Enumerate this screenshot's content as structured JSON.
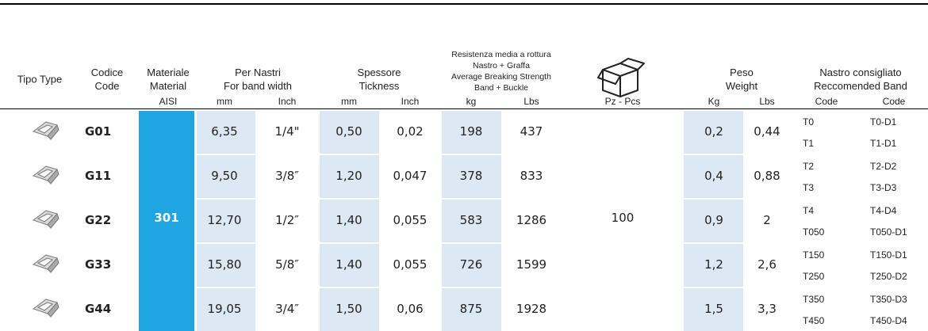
{
  "header": [
    {
      "lines": [
        "Tipo   Type"
      ]
    },
    {
      "lines": [
        "Codice",
        "Code"
      ]
    },
    {
      "lines": [
        "Materiale",
        "Material"
      ]
    },
    {
      "lines": [
        "Per Nastri",
        "For band  width"
      ]
    },
    {
      "lines": [
        "Spessore",
        "Tickness"
      ]
    },
    {
      "lines": [
        "Resistenza media a rottura",
        "Nastro + Graffa",
        "Average Breaking Strength",
        "Band + Buckle"
      ]
    },
    {
      "lines": [
        "Peso",
        "Weight"
      ]
    },
    {
      "lines": [
        "Nastro consigliato",
        "Reccomended  Band"
      ]
    }
  ],
  "subheader": [
    "AISI",
    "mm",
    "Inch",
    "mm",
    "Inch",
    "kg",
    "Lbs",
    "Pz - Pcs",
    "Kg",
    "Lbs",
    "Code",
    "Code"
  ],
  "material": "301",
  "pieces": "100",
  "rows": [
    {
      "code": "G01",
      "mm": "6,35",
      "inch": "1/4\"",
      "thick_mm": "0,50",
      "thick_inch": "0,02",
      "kg": "198",
      "lbs": "437",
      "weight_kg": "0,2",
      "weight_lbs": "0,44",
      "bands": [
        [
          "T0",
          "T0-D1"
        ],
        [
          "T1",
          "T1-D1"
        ]
      ]
    },
    {
      "code": "G11",
      "mm": "9,50",
      "inch": "3/8″",
      "thick_mm": "1,20",
      "thick_inch": "0,047",
      "kg": "378",
      "lbs": "833",
      "weight_kg": "0,4",
      "weight_lbs": "0,88",
      "bands": [
        [
          "T2",
          "T2-D2"
        ],
        [
          "T3",
          "T3-D3"
        ]
      ]
    },
    {
      "code": "G22",
      "mm": "12,70",
      "inch": "1/2″",
      "thick_mm": "1,40",
      "thick_inch": "0,055",
      "kg": "583",
      "lbs": "1286",
      "weight_kg": "0,9",
      "weight_lbs": "2",
      "bands": [
        [
          "T4",
          "T4-D4"
        ],
        [
          "T050",
          "T050-D1"
        ]
      ]
    },
    {
      "code": "G33",
      "mm": "15,80",
      "inch": "5/8″",
      "thick_mm": "1,40",
      "thick_inch": "0,055",
      "kg": "726",
      "lbs": "1599",
      "weight_kg": "1,2",
      "weight_lbs": "2,6",
      "bands": [
        [
          "T150",
          "T150-D1"
        ],
        [
          "T250",
          "T250-D2"
        ]
      ]
    },
    {
      "code": "G44",
      "mm": "19,05",
      "inch": "3/4″",
      "thick_mm": "1,50",
      "thick_inch": "0,06",
      "kg": "875",
      "lbs": "1928",
      "weight_kg": "1,5",
      "weight_lbs": "3,3",
      "bands": [
        [
          "T350",
          "T350-D3"
        ],
        [
          "T450",
          "T450-D4"
        ]
      ]
    }
  ]
}
